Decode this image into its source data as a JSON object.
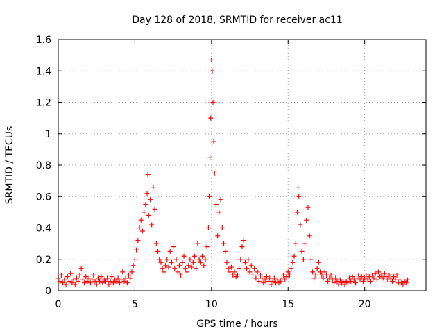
{
  "chart_data": {
    "type": "scatter",
    "title": "Day 128 of 2018, SRMTID for receiver ac11",
    "xlabel": "GPS time / hours",
    "ylabel": "SRMTID / TECUs",
    "xlim": [
      0,
      24
    ],
    "ylim": [
      0,
      1.6
    ],
    "xticks": [
      0,
      5,
      10,
      15,
      20
    ],
    "xtick_labels": [
      "0",
      "5",
      "10",
      "15",
      "20"
    ],
    "yticks": [
      0,
      0.2,
      0.4,
      0.6,
      0.8,
      1.0,
      1.2,
      1.4,
      1.6
    ],
    "ytick_labels": [
      "0",
      "0.2",
      "0.4",
      "0.6",
      "0.8",
      "1",
      "1.2",
      "1.4",
      "1.6"
    ],
    "grid": true,
    "marker": "plus",
    "series": [
      {
        "name": "SRMTID",
        "color": "#ff0000",
        "points": [
          [
            0.0,
            0.08
          ],
          [
            0.1,
            0.06
          ],
          [
            0.2,
            0.1
          ],
          [
            0.3,
            0.05
          ],
          [
            0.4,
            0.07
          ],
          [
            0.5,
            0.04
          ],
          [
            0.6,
            0.09
          ],
          [
            0.7,
            0.06
          ],
          [
            0.8,
            0.11
          ],
          [
            0.9,
            0.05
          ],
          [
            1.0,
            0.07
          ],
          [
            1.1,
            0.04
          ],
          [
            1.2,
            0.08
          ],
          [
            1.3,
            0.06
          ],
          [
            1.4,
            0.1
          ],
          [
            1.5,
            0.14
          ],
          [
            1.6,
            0.07
          ],
          [
            1.7,
            0.05
          ],
          [
            1.8,
            0.09
          ],
          [
            1.9,
            0.06
          ],
          [
            2.0,
            0.08
          ],
          [
            2.1,
            0.05
          ],
          [
            2.2,
            0.07
          ],
          [
            2.3,
            0.1
          ],
          [
            2.4,
            0.06
          ],
          [
            2.5,
            0.04
          ],
          [
            2.6,
            0.08
          ],
          [
            2.7,
            0.06
          ],
          [
            2.8,
            0.09
          ],
          [
            2.9,
            0.05
          ],
          [
            3.0,
            0.07
          ],
          [
            3.1,
            0.06
          ],
          [
            3.2,
            0.08
          ],
          [
            3.3,
            0.04
          ],
          [
            3.4,
            0.06
          ],
          [
            3.5,
            0.09
          ],
          [
            3.6,
            0.05
          ],
          [
            3.7,
            0.07
          ],
          [
            3.8,
            0.06
          ],
          [
            3.9,
            0.08
          ],
          [
            4.0,
            0.05
          ],
          [
            4.1,
            0.07
          ],
          [
            4.2,
            0.12
          ],
          [
            4.3,
            0.06
          ],
          [
            4.4,
            0.08
          ],
          [
            4.5,
            0.05
          ],
          [
            4.6,
            0.1
          ],
          [
            4.7,
            0.08
          ],
          [
            4.8,
            0.12
          ],
          [
            4.9,
            0.16
          ],
          [
            5.0,
            0.2
          ],
          [
            5.1,
            0.26
          ],
          [
            5.2,
            0.32
          ],
          [
            5.3,
            0.4
          ],
          [
            5.4,
            0.45
          ],
          [
            5.5,
            0.38
          ],
          [
            5.6,
            0.5
          ],
          [
            5.7,
            0.55
          ],
          [
            5.8,
            0.62
          ],
          [
            5.85,
            0.74
          ],
          [
            5.9,
            0.48
          ],
          [
            6.0,
            0.58
          ],
          [
            6.1,
            0.42
          ],
          [
            6.2,
            0.66
          ],
          [
            6.3,
            0.52
          ],
          [
            6.4,
            0.3
          ],
          [
            6.5,
            0.25
          ],
          [
            6.6,
            0.2
          ],
          [
            6.7,
            0.18
          ],
          [
            6.8,
            0.14
          ],
          [
            6.9,
            0.12
          ],
          [
            7.0,
            0.16
          ],
          [
            7.1,
            0.2
          ],
          [
            7.2,
            0.15
          ],
          [
            7.3,
            0.25
          ],
          [
            7.4,
            0.18
          ],
          [
            7.5,
            0.28
          ],
          [
            7.6,
            0.14
          ],
          [
            7.7,
            0.2
          ],
          [
            7.8,
            0.12
          ],
          [
            7.9,
            0.16
          ],
          [
            8.0,
            0.1
          ],
          [
            8.1,
            0.18
          ],
          [
            8.2,
            0.22
          ],
          [
            8.3,
            0.14
          ],
          [
            8.4,
            0.12
          ],
          [
            8.5,
            0.16
          ],
          [
            8.6,
            0.2
          ],
          [
            8.7,
            0.15
          ],
          [
            8.8,
            0.18
          ],
          [
            8.9,
            0.22
          ],
          [
            9.0,
            0.14
          ],
          [
            9.1,
            0.3
          ],
          [
            9.2,
            0.2
          ],
          [
            9.3,
            0.18
          ],
          [
            9.4,
            0.22
          ],
          [
            9.5,
            0.16
          ],
          [
            9.6,
            0.2
          ],
          [
            9.7,
            0.28
          ],
          [
            9.8,
            0.4
          ],
          [
            9.85,
            0.6
          ],
          [
            9.9,
            0.85
          ],
          [
            9.95,
            1.1
          ],
          [
            10.0,
            1.47
          ],
          [
            10.05,
            1.4
          ],
          [
            10.1,
            1.2
          ],
          [
            10.15,
            0.95
          ],
          [
            10.2,
            0.75
          ],
          [
            10.3,
            0.55
          ],
          [
            10.4,
            0.35
          ],
          [
            10.5,
            0.5
          ],
          [
            10.6,
            0.58
          ],
          [
            10.7,
            0.4
          ],
          [
            10.8,
            0.3
          ],
          [
            10.9,
            0.25
          ],
          [
            11.0,
            0.18
          ],
          [
            11.1,
            0.14
          ],
          [
            11.2,
            0.12
          ],
          [
            11.3,
            0.15
          ],
          [
            11.4,
            0.1
          ],
          [
            11.5,
            0.12
          ],
          [
            11.6,
            0.09
          ],
          [
            11.7,
            0.1
          ],
          [
            11.8,
            0.14
          ],
          [
            11.9,
            0.2
          ],
          [
            12.0,
            0.28
          ],
          [
            12.1,
            0.32
          ],
          [
            12.2,
            0.18
          ],
          [
            12.3,
            0.14
          ],
          [
            12.4,
            0.2
          ],
          [
            12.5,
            0.12
          ],
          [
            12.6,
            0.16
          ],
          [
            12.7,
            0.1
          ],
          [
            12.8,
            0.14
          ],
          [
            12.9,
            0.08
          ],
          [
            13.0,
            0.12
          ],
          [
            13.1,
            0.06
          ],
          [
            13.2,
            0.1
          ],
          [
            13.3,
            0.08
          ],
          [
            13.4,
            0.05
          ],
          [
            13.5,
            0.07
          ],
          [
            13.6,
            0.09
          ],
          [
            13.7,
            0.06
          ],
          [
            13.8,
            0.08
          ],
          [
            13.9,
            0.04
          ],
          [
            14.0,
            0.06
          ],
          [
            14.1,
            0.08
          ],
          [
            14.2,
            0.05
          ],
          [
            14.3,
            0.07
          ],
          [
            14.4,
            0.05
          ],
          [
            14.5,
            0.06
          ],
          [
            14.6,
            0.08
          ],
          [
            14.7,
            0.1
          ],
          [
            14.8,
            0.07
          ],
          [
            14.9,
            0.09
          ],
          [
            15.0,
            0.12
          ],
          [
            15.1,
            0.1
          ],
          [
            15.2,
            0.14
          ],
          [
            15.3,
            0.18
          ],
          [
            15.4,
            0.22
          ],
          [
            15.5,
            0.3
          ],
          [
            15.6,
            0.5
          ],
          [
            15.65,
            0.66
          ],
          [
            15.7,
            0.6
          ],
          [
            15.8,
            0.42
          ],
          [
            15.9,
            0.25
          ],
          [
            16.0,
            0.2
          ],
          [
            16.1,
            0.3
          ],
          [
            16.2,
            0.45
          ],
          [
            16.3,
            0.53
          ],
          [
            16.4,
            0.35
          ],
          [
            16.5,
            0.2
          ],
          [
            16.6,
            0.12
          ],
          [
            16.7,
            0.08
          ],
          [
            16.8,
            0.1
          ],
          [
            16.9,
            0.14
          ],
          [
            17.0,
            0.18
          ],
          [
            17.1,
            0.12
          ],
          [
            17.2,
            0.1
          ],
          [
            17.3,
            0.08
          ],
          [
            17.4,
            0.12
          ],
          [
            17.5,
            0.1
          ],
          [
            17.6,
            0.06
          ],
          [
            17.7,
            0.08
          ],
          [
            17.8,
            0.1
          ],
          [
            17.9,
            0.07
          ],
          [
            18.0,
            0.05
          ],
          [
            18.1,
            0.08
          ],
          [
            18.2,
            0.06
          ],
          [
            18.3,
            0.04
          ],
          [
            18.4,
            0.07
          ],
          [
            18.5,
            0.05
          ],
          [
            18.6,
            0.06
          ],
          [
            18.7,
            0.04
          ],
          [
            18.8,
            0.06
          ],
          [
            18.9,
            0.05
          ],
          [
            19.0,
            0.08
          ],
          [
            19.1,
            0.06
          ],
          [
            19.2,
            0.09
          ],
          [
            19.3,
            0.07
          ],
          [
            19.4,
            0.05
          ],
          [
            19.5,
            0.08
          ],
          [
            19.6,
            0.1
          ],
          [
            19.7,
            0.07
          ],
          [
            19.8,
            0.09
          ],
          [
            19.9,
            0.06
          ],
          [
            20.0,
            0.08
          ],
          [
            20.1,
            0.1
          ],
          [
            20.2,
            0.07
          ],
          [
            20.3,
            0.09
          ],
          [
            20.4,
            0.06
          ],
          [
            20.5,
            0.1
          ],
          [
            20.6,
            0.08
          ],
          [
            20.7,
            0.11
          ],
          [
            20.8,
            0.07
          ],
          [
            20.9,
            0.12
          ],
          [
            21.0,
            0.09
          ],
          [
            21.1,
            0.1
          ],
          [
            21.2,
            0.08
          ],
          [
            21.3,
            0.11
          ],
          [
            21.4,
            0.09
          ],
          [
            21.5,
            0.07
          ],
          [
            21.6,
            0.1
          ],
          [
            21.7,
            0.08
          ],
          [
            21.8,
            0.06
          ],
          [
            21.9,
            0.09
          ],
          [
            22.0,
            0.07
          ],
          [
            22.1,
            0.1
          ],
          [
            22.2,
            0.05
          ],
          [
            22.3,
            0.07
          ],
          [
            22.4,
            0.05
          ],
          [
            22.5,
            0.04
          ],
          [
            22.6,
            0.06
          ],
          [
            22.7,
            0.05
          ],
          [
            22.8,
            0.07
          ]
        ]
      }
    ]
  }
}
